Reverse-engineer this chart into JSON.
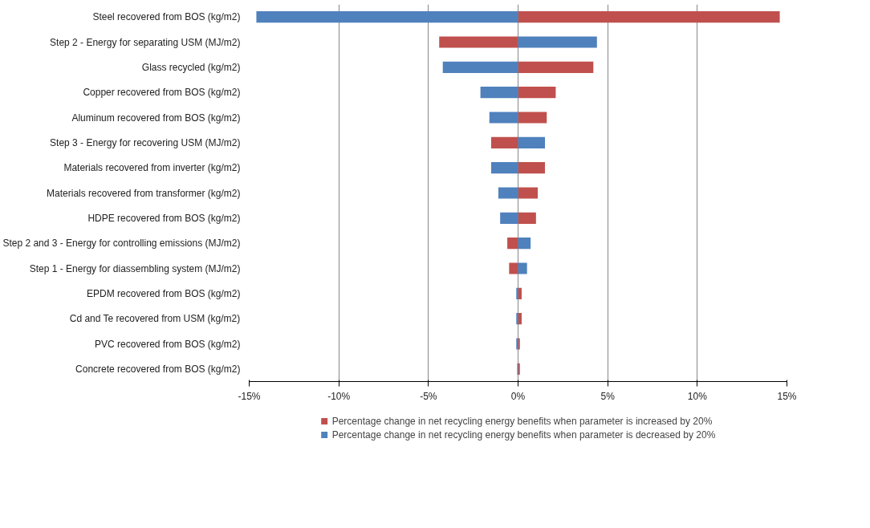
{
  "chart_data": {
    "type": "bar",
    "orientation": "horizontal",
    "categories": [
      "Steel recovered from BOS (kg/m2)",
      "Step 2 - Energy for separating USM (MJ/m2)",
      "Glass recycled (kg/m2)",
      "Copper recovered from BOS (kg/m2)",
      "Aluminum recovered from BOS (kg/m2)",
      "Step 3 - Energy for recovering USM (MJ/m2)",
      "Materials recovered from inverter (kg/m2)",
      "Materials recovered from transformer (kg/m2)",
      "HDPE recovered from BOS (kg/m2)",
      "Step 2 and 3 - Energy for controlling emissions (MJ/m2)",
      "Step 1 - Energy for diassembling system (MJ/m2)",
      "EPDM recovered from BOS (kg/m2)",
      "Cd and Te recovered from USM (kg/m2)",
      "PVC recovered from BOS (kg/m2)",
      "Concrete recovered from BOS (kg/m2)"
    ],
    "series": [
      {
        "name": "Percentage change in net recycling energy benefits when parameter is increased by 20%",
        "color": "#c0504d",
        "values": [
          14.6,
          -4.4,
          4.2,
          2.1,
          1.6,
          -1.5,
          1.5,
          1.1,
          1.0,
          -0.6,
          -0.5,
          0.2,
          0.2,
          0.1,
          0.1
        ]
      },
      {
        "name": "Percentage change in net recycling energy benefits when parameter is decreased by 20%",
        "color": "#4f81bd",
        "values": [
          -14.6,
          4.4,
          -4.2,
          -2.1,
          -1.6,
          1.5,
          -1.5,
          -1.1,
          -1.0,
          0.7,
          0.5,
          -0.1,
          -0.1,
          -0.1,
          -0.05
        ]
      }
    ],
    "xlim": [
      -15,
      15
    ],
    "xticks": [
      {
        "value": -15,
        "label": "-15%"
      },
      {
        "value": -10,
        "label": "-10%"
      },
      {
        "value": -5,
        "label": "-5%"
      },
      {
        "value": 0,
        "label": "0%"
      },
      {
        "value": 5,
        "label": "5%"
      },
      {
        "value": 10,
        "label": "10%"
      },
      {
        "value": 15,
        "label": "15%"
      }
    ],
    "grid": "x",
    "legend": "bottom",
    "stacked": true
  }
}
